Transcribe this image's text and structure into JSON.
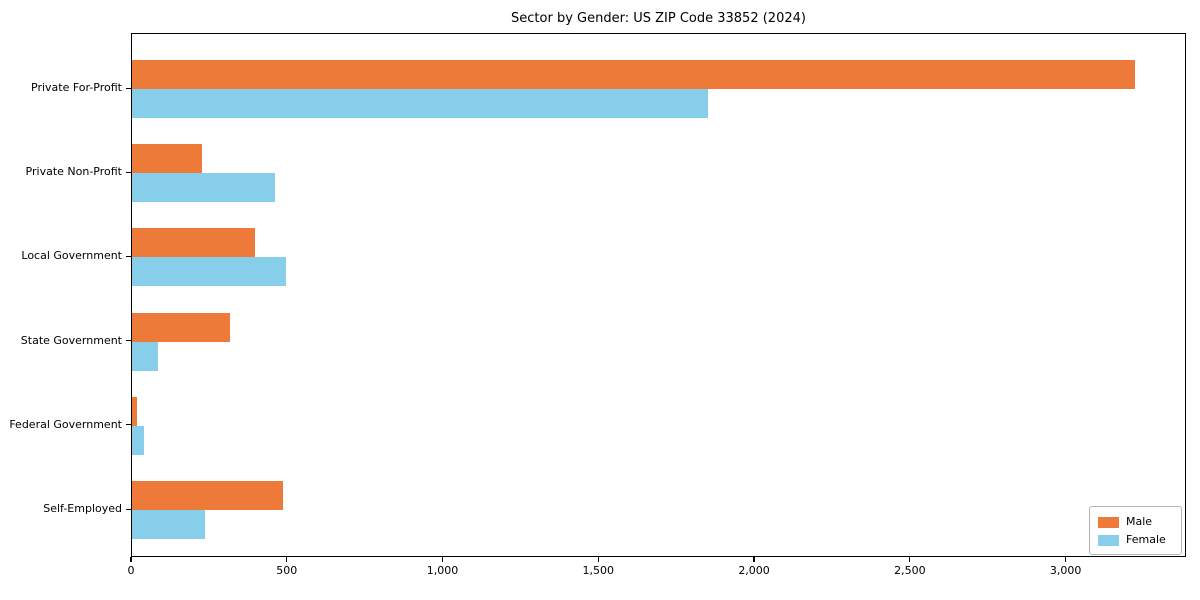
{
  "chart_data": {
    "type": "bar",
    "orientation": "horizontal",
    "title": "Sector by Gender: US ZIP Code 33852 (2024)",
    "categories": [
      "Private For-Profit",
      "Private Non-Profit",
      "Local Government",
      "State Government",
      "Federal Government",
      "Self-Employed"
    ],
    "series": [
      {
        "name": "Male",
        "color": "#ED7A39",
        "values": [
          3220,
          225,
          395,
          315,
          15,
          485
        ]
      },
      {
        "name": "Female",
        "color": "#87CEEB",
        "values": [
          1850,
          460,
          495,
          85,
          40,
          235
        ]
      }
    ],
    "xlabel": "",
    "ylabel": "",
    "xlim": [
      0,
      3380
    ],
    "xticks": {
      "values": [
        0,
        500,
        1000,
        1500,
        2000,
        2500,
        3000
      ],
      "labels": [
        "0",
        "500",
        "1,000",
        "1,500",
        "2,000",
        "2,500",
        "3,000"
      ]
    },
    "grid": false,
    "legend": {
      "position": "lower right",
      "entries": [
        "Male",
        "Female"
      ]
    }
  }
}
